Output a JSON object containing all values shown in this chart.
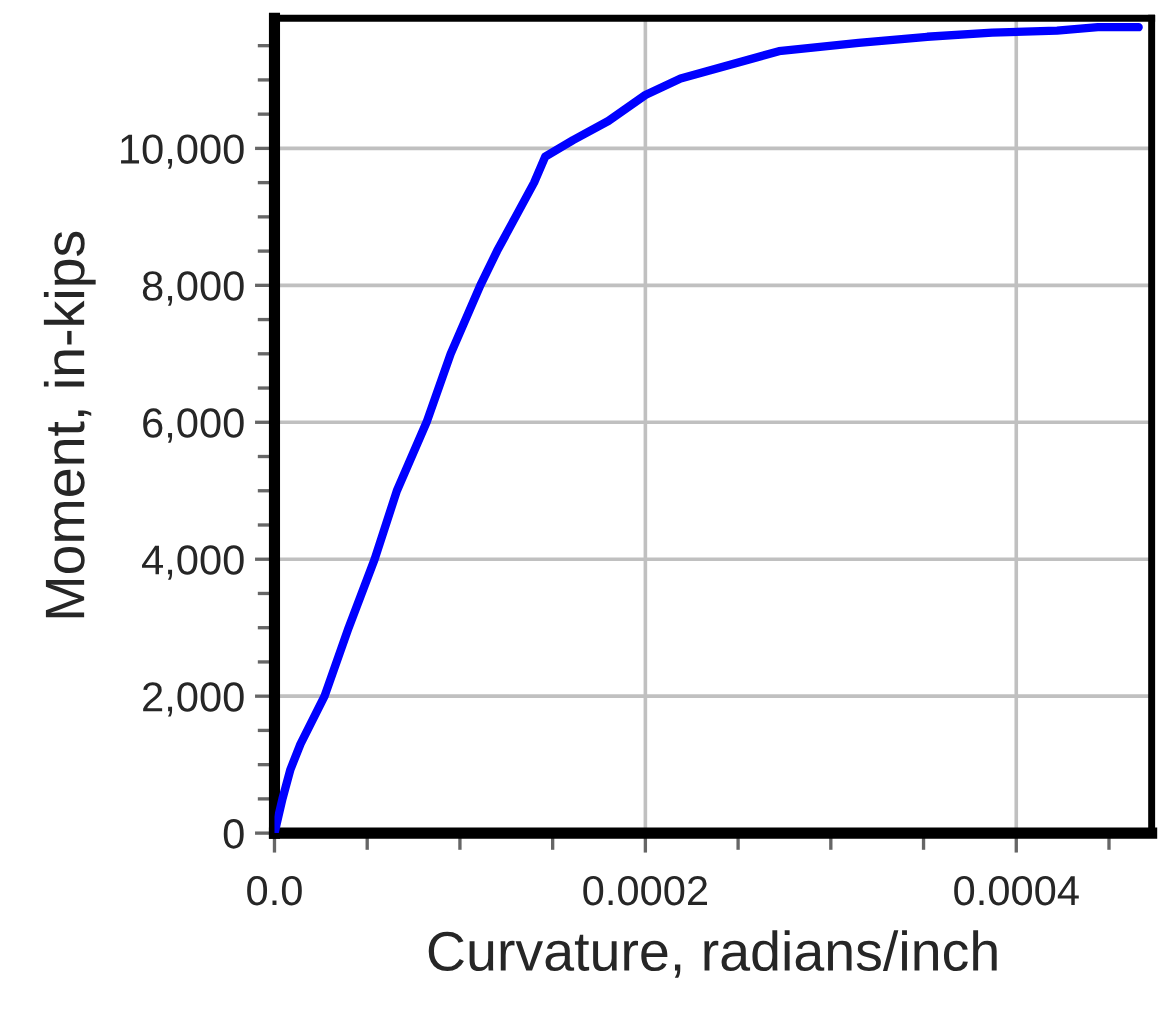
{
  "chart_data": {
    "type": "line",
    "xlabel": "Curvature, radians/inch",
    "ylabel": "Moment, in-kips",
    "x": [
      0,
      4.3e-06,
      8.6e-06,
      1.4e-05,
      2.7e-05,
      4e-05,
      5.4e-05,
      6.6e-05,
      8.2e-05,
      9.5e-05,
      0.000111,
      0.00012,
      0.00013,
      0.00014,
      0.000146,
      0.000161,
      0.00018,
      0.0002,
      0.000219,
      0.000272,
      0.000315,
      0.000352,
      0.000387,
      0.000422,
      0.000444,
      0.000466
    ],
    "series": [
      {
        "color": "#0000ff",
        "values": [
          0,
          500,
          930,
          1300,
          2000,
          3000,
          4000,
          5000,
          6000,
          7000,
          8000,
          8500,
          9000,
          9500,
          9880,
          10120,
          10400,
          10780,
          11020,
          11420,
          11540,
          11630,
          11690,
          11720,
          11770,
          11770
        ]
      }
    ],
    "xlim": [
      0,
      0.000473
    ],
    "ylim": [
      0,
      11900
    ],
    "xticks": [
      {
        "value": 0,
        "label": "0.0"
      },
      {
        "value": 5e-05,
        "label": null
      },
      {
        "value": 0.0001,
        "label": null
      },
      {
        "value": 0.00015,
        "label": null
      },
      {
        "value": 0.0002,
        "label": "0.0002"
      },
      {
        "value": 0.00025,
        "label": null
      },
      {
        "value": 0.0003,
        "label": null
      },
      {
        "value": 0.00035,
        "label": null
      },
      {
        "value": 0.0004,
        "label": "0.0004"
      },
      {
        "value": 0.00045,
        "label": null
      }
    ],
    "yticks": [
      0,
      {
        "value": 500,
        "label": null
      },
      {
        "value": 1000,
        "label": null
      },
      {
        "value": 1500,
        "label": null
      },
      {
        "value": 2000,
        "label": "2,000"
      },
      {
        "value": 2500,
        "label": null
      },
      {
        "value": 3000,
        "label": null
      },
      {
        "value": 3500,
        "label": null
      },
      {
        "value": 4000,
        "label": "4,000"
      },
      {
        "value": 4500,
        "label": null
      },
      {
        "value": 5000,
        "label": null
      },
      {
        "value": 5500,
        "label": null
      },
      {
        "value": 6000,
        "label": "6,000"
      },
      {
        "value": 6500,
        "label": null
      },
      {
        "value": 7000,
        "label": null
      },
      {
        "value": 7500,
        "label": null
      },
      {
        "value": 8000,
        "label": "8,000"
      },
      {
        "value": 8500,
        "label": null
      },
      {
        "value": 9000,
        "label": null
      },
      {
        "value": 9500,
        "label": null
      },
      {
        "value": 10000,
        "label": "10,000"
      },
      {
        "value": 10500,
        "label": null
      },
      {
        "value": 11000,
        "label": null
      },
      {
        "value": 11500,
        "label": null
      }
    ],
    "grid": true,
    "line_style": "solid",
    "legend": false
  }
}
